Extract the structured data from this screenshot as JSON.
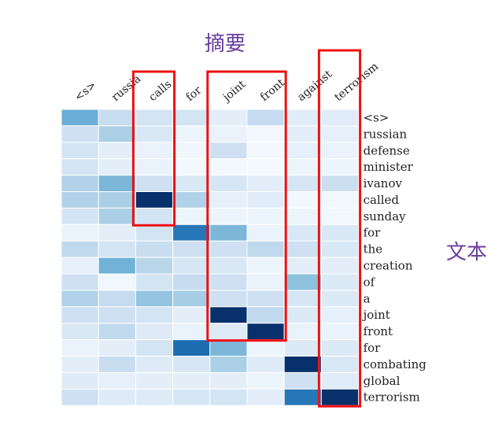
{
  "title_label": "摘要",
  "side_label": "文本",
  "accent_color": "#6a3fa0",
  "box_color": "#ee1111",
  "colormap": "Blues",
  "chart_data": {
    "type": "heatmap",
    "x_labels": [
      "<s>",
      "russia",
      "calls",
      "for",
      "joint",
      "front",
      "against",
      "terrorism"
    ],
    "y_labels": [
      "<s>",
      "russian",
      "defense",
      "minister",
      "ivanov",
      "called",
      "sunday",
      "for",
      "the",
      "creation",
      "of",
      "a",
      "joint",
      "front",
      "for",
      "combating",
      "global",
      "terrorism"
    ],
    "values": [
      [
        0.6,
        0.28,
        0.22,
        0.22,
        0.12,
        0.3,
        0.14,
        0.14
      ],
      [
        0.25,
        0.4,
        0.18,
        0.06,
        0.08,
        0.03,
        0.12,
        0.1
      ],
      [
        0.22,
        0.12,
        0.08,
        0.05,
        0.25,
        0.03,
        0.1,
        0.08
      ],
      [
        0.22,
        0.12,
        0.08,
        0.03,
        0.03,
        0.02,
        0.06,
        0.06
      ],
      [
        0.38,
        0.55,
        0.25,
        0.18,
        0.2,
        0.12,
        0.2,
        0.26
      ],
      [
        0.38,
        0.4,
        1.0,
        0.38,
        0.1,
        0.14,
        0.03,
        0.04
      ],
      [
        0.22,
        0.4,
        0.22,
        0.06,
        0.06,
        0.06,
        0.06,
        0.04
      ],
      [
        0.08,
        0.12,
        0.22,
        0.82,
        0.55,
        0.08,
        0.18,
        0.18
      ],
      [
        0.32,
        0.22,
        0.28,
        0.25,
        0.25,
        0.32,
        0.25,
        0.18
      ],
      [
        0.1,
        0.58,
        0.35,
        0.2,
        0.18,
        0.06,
        0.12,
        0.12
      ],
      [
        0.25,
        0.04,
        0.22,
        0.3,
        0.25,
        0.08,
        0.5,
        0.16
      ],
      [
        0.38,
        0.3,
        0.48,
        0.42,
        0.25,
        0.25,
        0.2,
        0.16
      ],
      [
        0.25,
        0.25,
        0.22,
        0.12,
        1.0,
        0.32,
        0.16,
        0.1
      ],
      [
        0.18,
        0.32,
        0.15,
        0.08,
        0.15,
        1.0,
        0.08,
        0.08
      ],
      [
        0.08,
        0.12,
        0.22,
        0.85,
        0.55,
        0.06,
        0.16,
        0.16
      ],
      [
        0.12,
        0.28,
        0.15,
        0.2,
        0.4,
        0.15,
        1.0,
        0.18
      ],
      [
        0.15,
        0.1,
        0.12,
        0.12,
        0.12,
        0.06,
        0.25,
        0.14
      ],
      [
        0.25,
        0.15,
        0.15,
        0.2,
        0.22,
        0.12,
        0.82,
        1.0
      ]
    ],
    "highlight_boxes": [
      {
        "label": "calls",
        "columns": [
          2,
          2
        ],
        "rows": [
          0,
          6
        ]
      },
      {
        "label": "joint front",
        "columns": [
          4,
          5
        ],
        "rows": [
          0,
          13
        ]
      },
      {
        "label": "terrorism",
        "columns": [
          7,
          7
        ],
        "rows": [
          0,
          17
        ]
      }
    ]
  }
}
